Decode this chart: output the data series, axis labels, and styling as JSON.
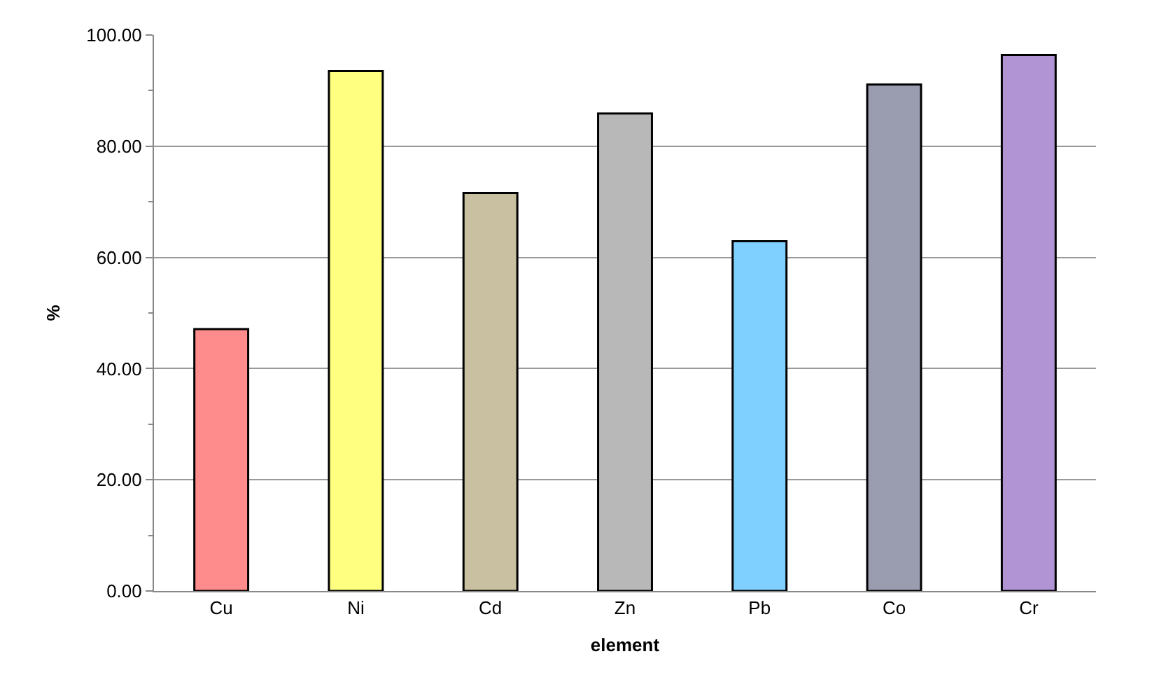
{
  "chart_data": {
    "type": "bar",
    "xlabel": "element",
    "ylabel": "%",
    "categories": [
      "Cu",
      "Ni",
      "Cd",
      "Zn",
      "Pb",
      "Co",
      "Cr"
    ],
    "values": [
      47.1,
      93.5,
      71.6,
      85.9,
      62.9,
      91.1,
      96.4
    ],
    "colors": [
      "#ff8c8c",
      "#ffff80",
      "#c8c0a0",
      "#b8b8b8",
      "#80d0ff",
      "#9a9cb0",
      "#b094d4"
    ],
    "ylim": [
      0,
      100
    ],
    "yticks": [
      {
        "value": 0,
        "label": "0.00"
      },
      {
        "value": 20,
        "label": "20.00"
      },
      {
        "value": 40,
        "label": "40.00"
      },
      {
        "value": 60,
        "label": "60.00"
      },
      {
        "value": 80,
        "label": "80.00"
      },
      {
        "value": 100,
        "label": "100.00"
      }
    ],
    "grid": "y"
  }
}
